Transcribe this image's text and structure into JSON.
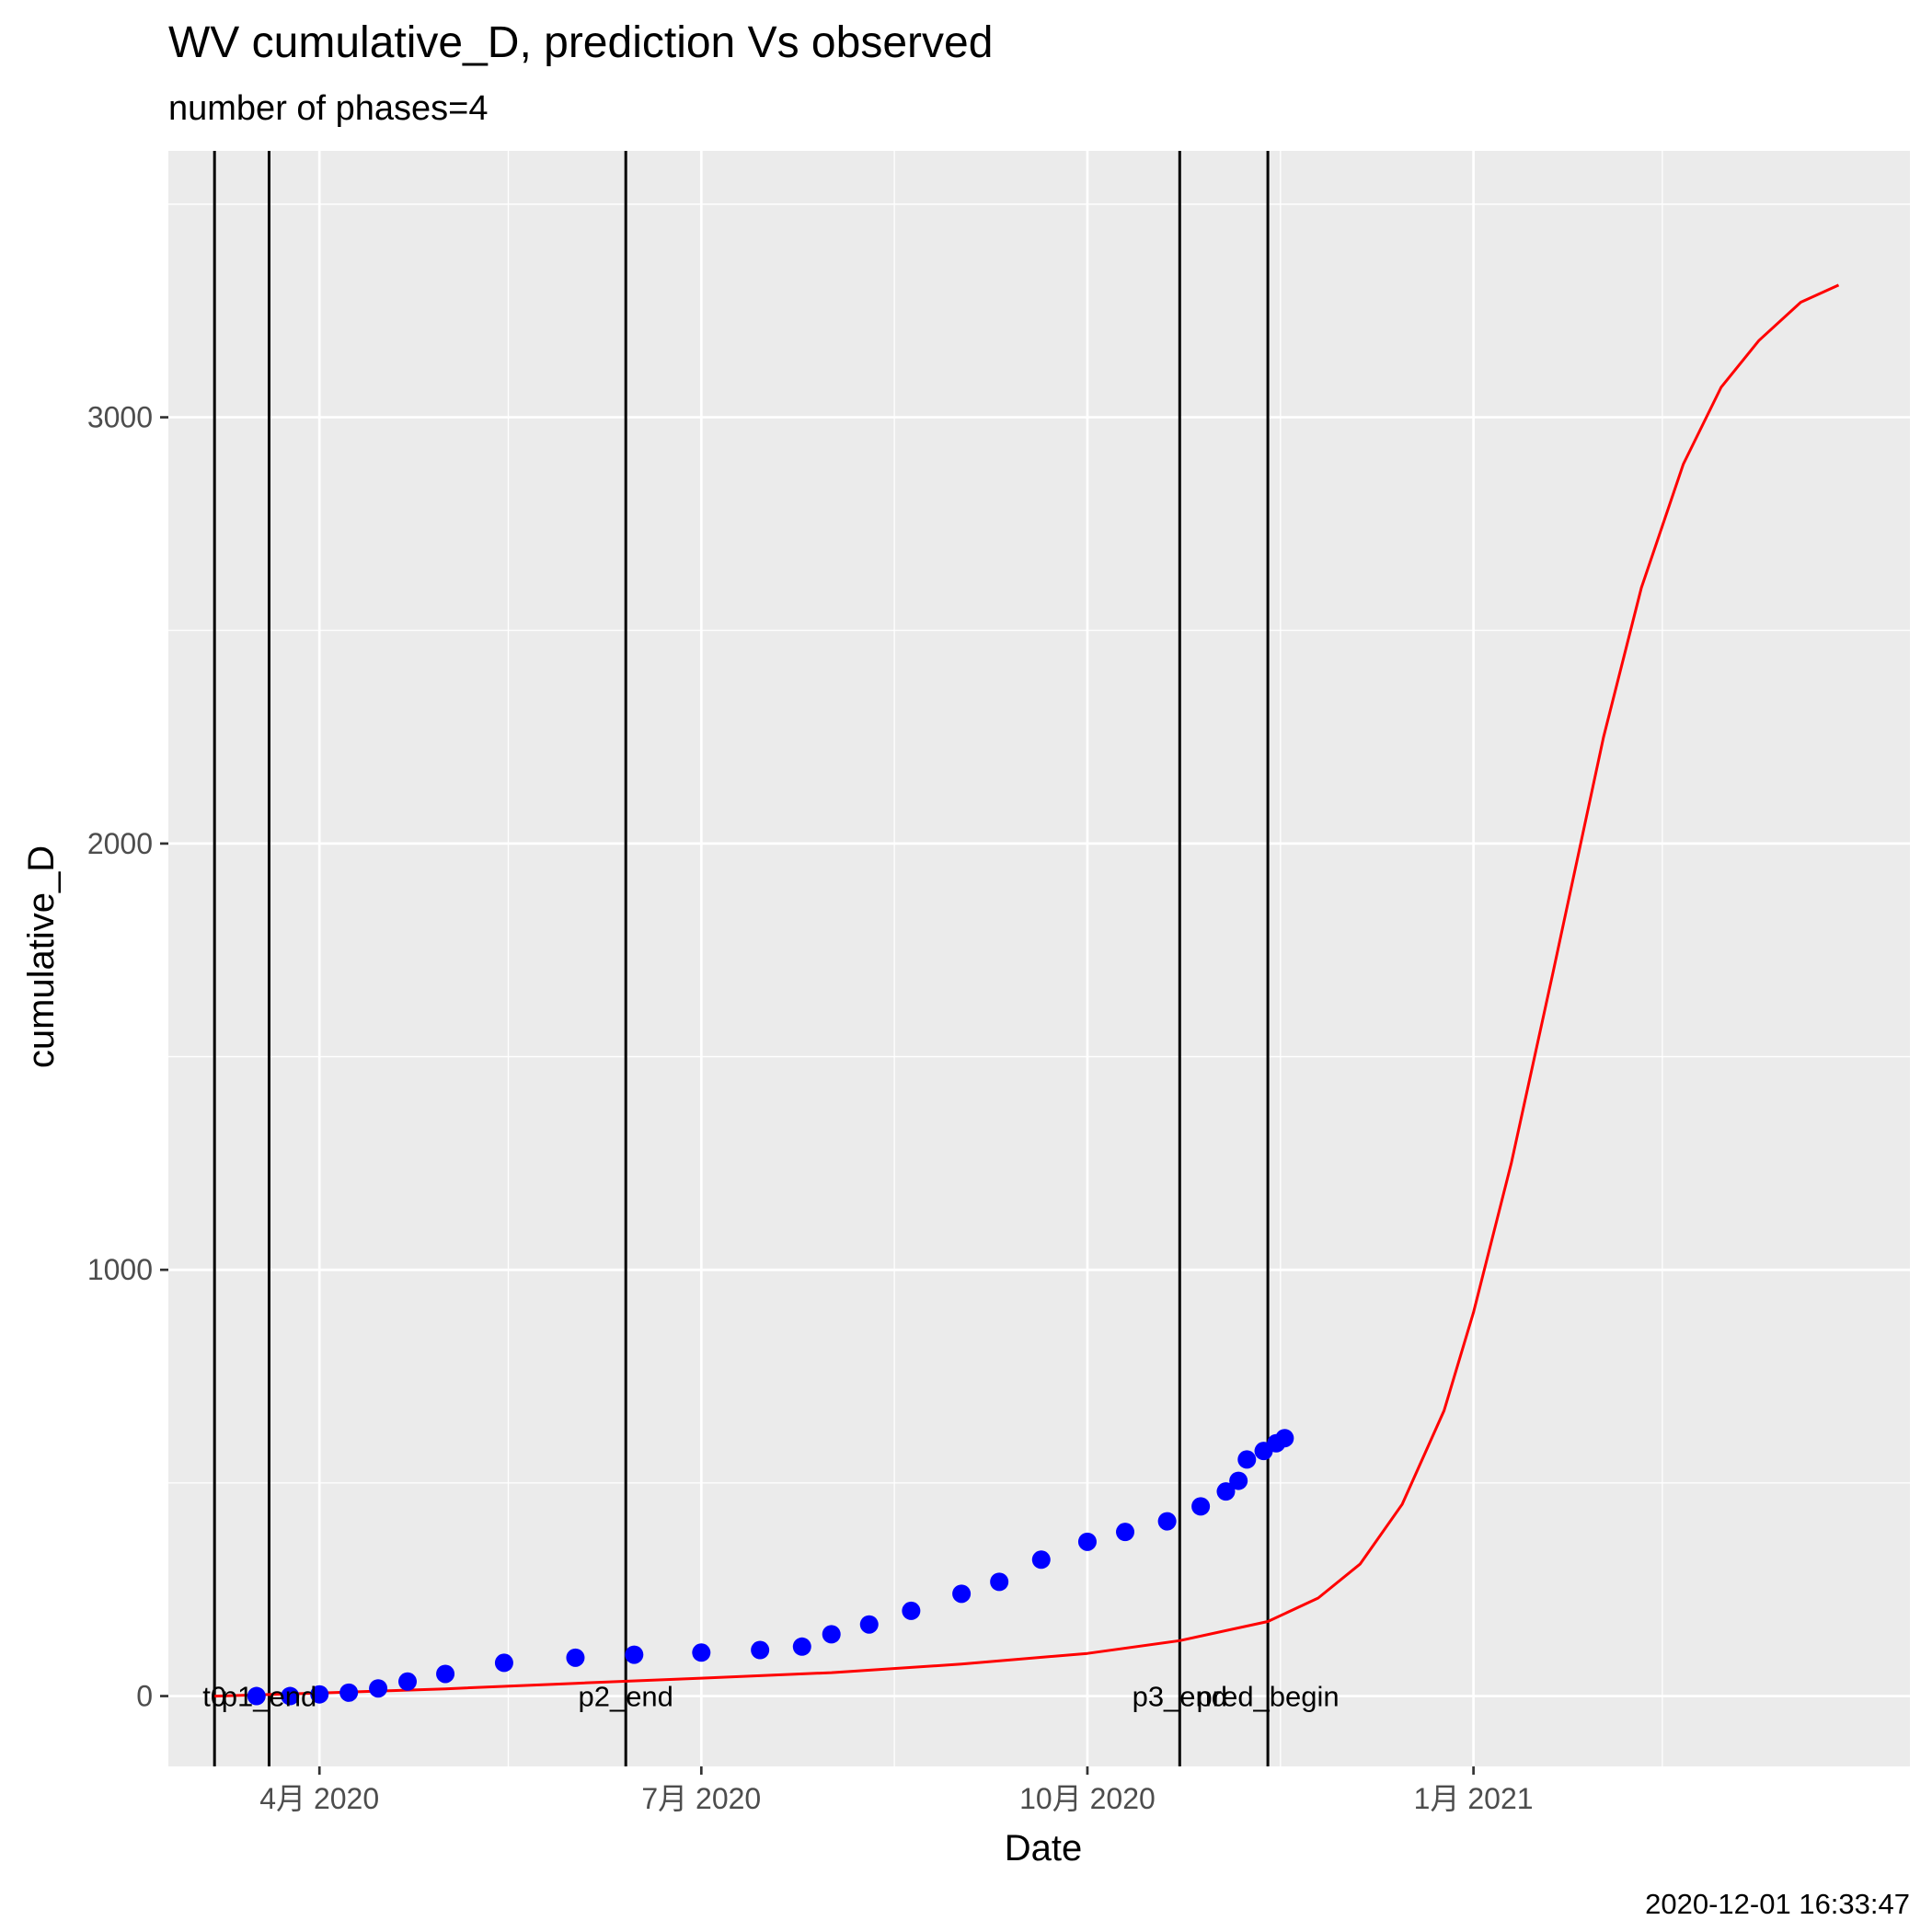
{
  "chart_data": {
    "type": "line",
    "title": "WV cumulative_D,  prediction Vs observed",
    "subtitle": "number of phases=4",
    "xlabel": "Date",
    "ylabel": "cumulative_D",
    "caption": "2020-12-01 16:33:47",
    "xlim": [
      "2020-02-25",
      "2021-04-15"
    ],
    "ylim": [
      -165,
      3625
    ],
    "x_ticks": [
      {
        "date": "2020-04-01",
        "label": "4月 2020"
      },
      {
        "date": "2020-07-01",
        "label": "7月 2020"
      },
      {
        "date": "2020-10-01",
        "label": "10月 2020"
      },
      {
        "date": "2021-01-01",
        "label": "1月 2021"
      }
    ],
    "x_minor_ticks": [
      "2020-02-15",
      "2020-05-16",
      "2020-08-16",
      "2020-11-16",
      "2021-02-15"
    ],
    "y_ticks": [
      0,
      1000,
      2000,
      3000
    ],
    "y_minor_ticks": [
      500,
      1500,
      2500,
      3500
    ],
    "grid": true,
    "phase_lines": [
      {
        "date": "2020-03-07",
        "label": "t0"
      },
      {
        "date": "2020-03-20",
        "label": "p1_end"
      },
      {
        "date": "2020-06-13",
        "label": "p2_end"
      },
      {
        "date": "2020-10-23",
        "label": "p3_end"
      },
      {
        "date": "2020-11-13",
        "label": "pred_begin"
      }
    ],
    "series": [
      {
        "role": "observed",
        "color": "#0000ff",
        "style": "points",
        "x": [
          "2020-03-17",
          "2020-03-25",
          "2020-04-01",
          "2020-04-08",
          "2020-04-15",
          "2020-04-22",
          "2020-05-01",
          "2020-05-15",
          "2020-06-01",
          "2020-06-15",
          "2020-07-01",
          "2020-07-15",
          "2020-07-25",
          "2020-08-01",
          "2020-08-10",
          "2020-08-20",
          "2020-09-01",
          "2020-09-10",
          "2020-09-20",
          "2020-10-01",
          "2020-10-10",
          "2020-10-20",
          "2020-10-28",
          "2020-11-03",
          "2020-11-06",
          "2020-11-08",
          "2020-11-12",
          "2020-11-15",
          "2020-11-17"
        ],
        "values": [
          0,
          0,
          4,
          8,
          18,
          34,
          52,
          78,
          90,
          97,
          102,
          108,
          116,
          145,
          168,
          200,
          240,
          268,
          320,
          362,
          385,
          410,
          445,
          480,
          505,
          555,
          575,
          593,
          605
        ]
      },
      {
        "role": "prediction",
        "color": "#ff0000",
        "style": "line",
        "x": [
          "2020-03-07",
          "2020-04-01",
          "2020-05-01",
          "2020-06-01",
          "2020-07-01",
          "2020-08-01",
          "2020-09-01",
          "2020-10-01",
          "2020-10-23",
          "2020-11-13",
          "2020-11-25",
          "2020-12-05",
          "2020-12-15",
          "2020-12-25",
          "2021-01-01",
          "2021-01-10",
          "2021-01-20",
          "2021-02-01",
          "2021-02-10",
          "2021-02-20",
          "2021-03-01",
          "2021-03-10",
          "2021-03-20",
          "2021-03-29"
        ],
        "values": [
          0,
          7,
          17,
          30,
          42,
          55,
          75,
          100,
          130,
          175,
          230,
          310,
          450,
          670,
          900,
          1250,
          1700,
          2250,
          2600,
          2890,
          3070,
          3180,
          3270,
          3310
        ]
      }
    ]
  }
}
